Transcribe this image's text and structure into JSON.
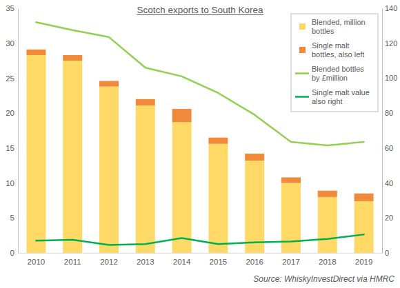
{
  "chart_data": {
    "type": "bar",
    "title": "Scotch exports to South Korea",
    "source": "Source: WhiskyInvestDirect via HMRC",
    "categories": [
      "2010",
      "2011",
      "2012",
      "2013",
      "2014",
      "2015",
      "2016",
      "2017",
      "2018",
      "2019"
    ],
    "stacked": true,
    "grid": false,
    "legend": "top-right",
    "ylim": [
      0,
      35
    ],
    "yticks": [
      0,
      5,
      10,
      15,
      20,
      25,
      30,
      35
    ],
    "y2lim": [
      0,
      140
    ],
    "y2ticks": [
      0,
      20,
      40,
      60,
      80,
      100,
      120,
      140
    ],
    "series": [
      {
        "name": "Blended, million bottles",
        "type": "bar",
        "color": "#FFD966",
        "values": [
          28.3,
          27.5,
          23.8,
          21.1,
          18.7,
          15.6,
          13.2,
          10.0,
          8.0,
          7.4
        ]
      },
      {
        "name": "Single malt bottles, also left",
        "type": "bar",
        "color": "#F08A3A",
        "values": [
          0.8,
          0.8,
          0.8,
          0.9,
          1.9,
          0.9,
          1.0,
          0.8,
          0.9,
          1.1
        ]
      },
      {
        "name": "Blended bottles by £million",
        "type": "line",
        "color": "#92D050",
        "axis": "y2",
        "values": [
          132,
          127.5,
          123.5,
          106,
          101,
          91.5,
          79,
          63.5,
          61.5,
          63.5
        ]
      },
      {
        "name": "Single malt value also right",
        "type": "line",
        "color": "#00B050",
        "axis": "y2",
        "values": [
          7,
          7.5,
          4.5,
          5,
          8.5,
          5,
          6,
          6.5,
          8,
          10.5
        ]
      }
    ]
  }
}
